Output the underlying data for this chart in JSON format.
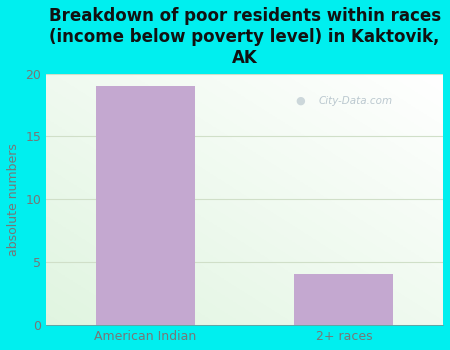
{
  "categories": [
    "American Indian",
    "2+ races"
  ],
  "values": [
    19,
    4
  ],
  "bar_color": "#c4a8d0",
  "background_color": "#00efef",
  "title": "Breakdown of poor residents within races\n(income below poverty level) in Kaktovik,\nAK",
  "ylabel": "absolute numbers",
  "ylim": [
    0,
    20
  ],
  "yticks": [
    0,
    5,
    10,
    15,
    20
  ],
  "title_color": "#111111",
  "label_color": "#777777",
  "tick_color": "#777777",
  "grid_color": "#d0dfc8",
  "watermark": "City-Data.com",
  "title_fontsize": 12,
  "ylabel_fontsize": 9,
  "tick_fontsize": 9
}
